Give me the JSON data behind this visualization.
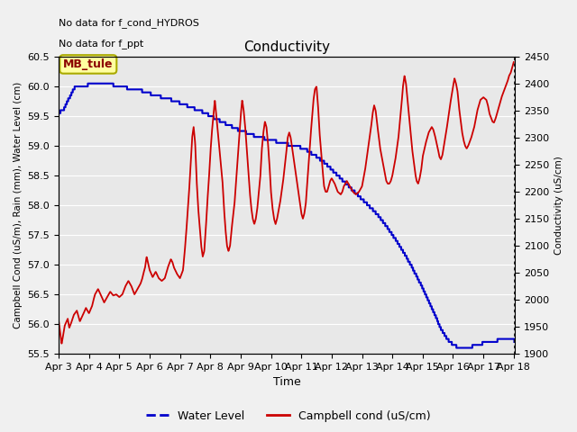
{
  "title": "Conductivity",
  "xlabel": "Time",
  "ylabel_left": "Campbell Cond (uS/m), Rain (mm), Water Level (cm)",
  "ylabel_right": "Conductivity (uS/cm)",
  "text_no_data1": "No data for f_cond_HYDROS",
  "text_no_data2": "No data for f_ppt",
  "legend_label": "MB_tule",
  "ylim_left": [
    55.5,
    60.5
  ],
  "ylim_right": [
    1900,
    2450
  ],
  "yticks_left": [
    55.5,
    56.0,
    56.5,
    57.0,
    57.5,
    58.0,
    58.5,
    59.0,
    59.5,
    60.0,
    60.5
  ],
  "yticks_right": [
    1900,
    1950,
    2000,
    2050,
    2100,
    2150,
    2200,
    2250,
    2300,
    2350,
    2400,
    2450
  ],
  "xtick_labels": [
    "Apr 3",
    "Apr 4",
    "Apr 5",
    "Apr 6",
    "Apr 7",
    "Apr 8",
    "Apr 9",
    "Apr 10",
    "Apr 11",
    "Apr 12",
    "Apr 13",
    "Apr 14",
    "Apr 15",
    "Apr 16",
    "Apr 17",
    "Apr 18"
  ],
  "xlim": [
    3.0,
    18.05
  ],
  "background_color": "#e8e8e8",
  "grid_color": "#ffffff",
  "blue_color": "#0000cc",
  "red_color": "#cc0000",
  "fig_facecolor": "#f0f0f0"
}
